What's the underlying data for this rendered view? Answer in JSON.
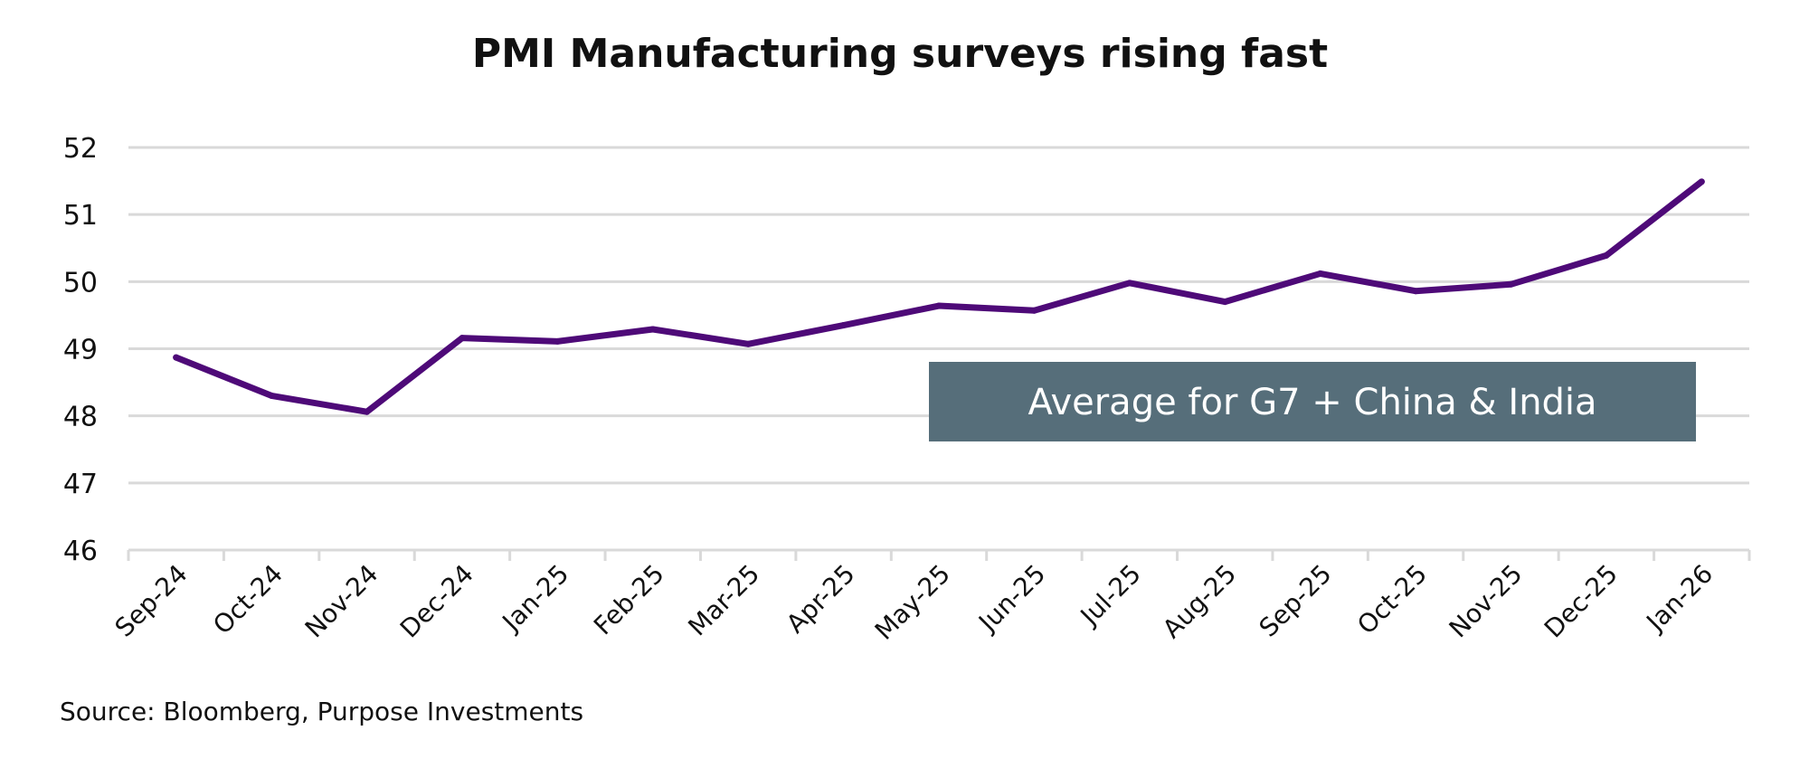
{
  "chart_data": {
    "type": "line",
    "title": "PMI Manufacturing surveys rising fast",
    "xlabel": "",
    "ylabel": "",
    "categories": [
      "Sep-24",
      "Oct-24",
      "Nov-24",
      "Dec-24",
      "Jan-25",
      "Feb-25",
      "Mar-25",
      "Apr-25",
      "May-25",
      "Jun-25",
      "Jul-25",
      "Aug-25",
      "Sep-25",
      "Oct-25",
      "Nov-25",
      "Dec-25",
      "Jan-26"
    ],
    "series": [
      {
        "values": [
          48.87,
          48.3,
          48.06,
          49.16,
          49.11,
          49.29,
          49.07,
          49.35,
          49.64,
          49.57,
          49.98,
          49.7,
          50.12,
          49.86,
          49.96,
          50.39,
          51.49
        ],
        "color": "#4e0a78"
      }
    ],
    "ylim": [
      46,
      52
    ],
    "yticks": [
      46,
      47,
      48,
      49,
      50,
      51,
      52
    ],
    "grid": true,
    "annotation": {
      "text": "Average for G7 + China & India",
      "background": "#566e7a",
      "color": "#ffffff"
    },
    "source": "Source: Bloomberg, Purpose Investments"
  }
}
